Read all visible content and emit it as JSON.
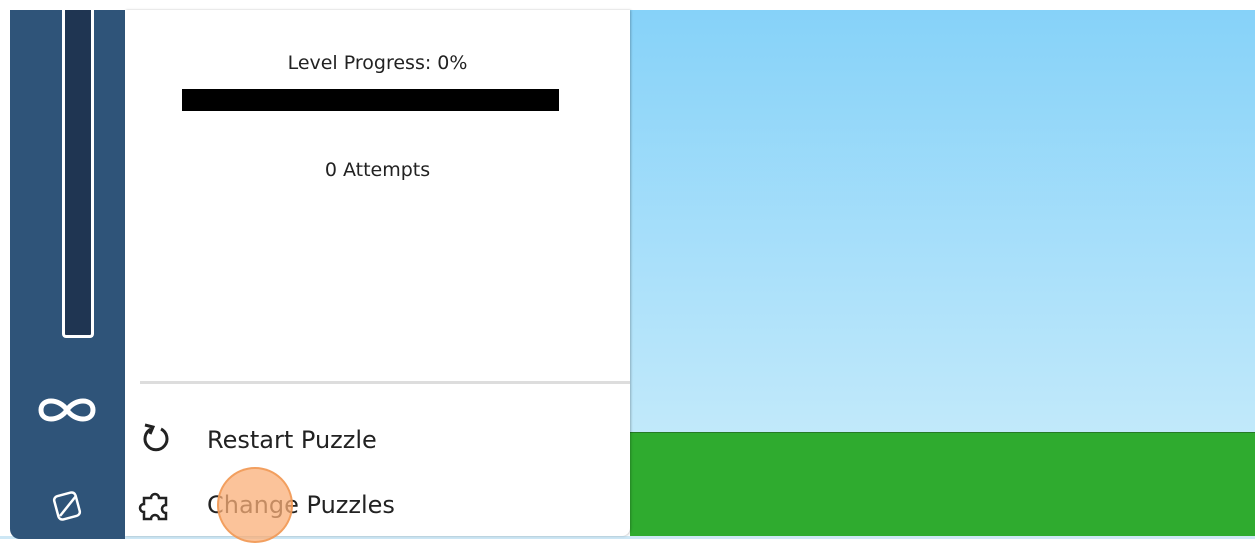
{
  "panel": {
    "progress_label": "Level Progress: 0%",
    "attempts": "0 Attempts"
  },
  "menu": {
    "items": [
      {
        "label": "Restart Puzzle"
      },
      {
        "label": "Change Puzzles"
      }
    ]
  }
}
